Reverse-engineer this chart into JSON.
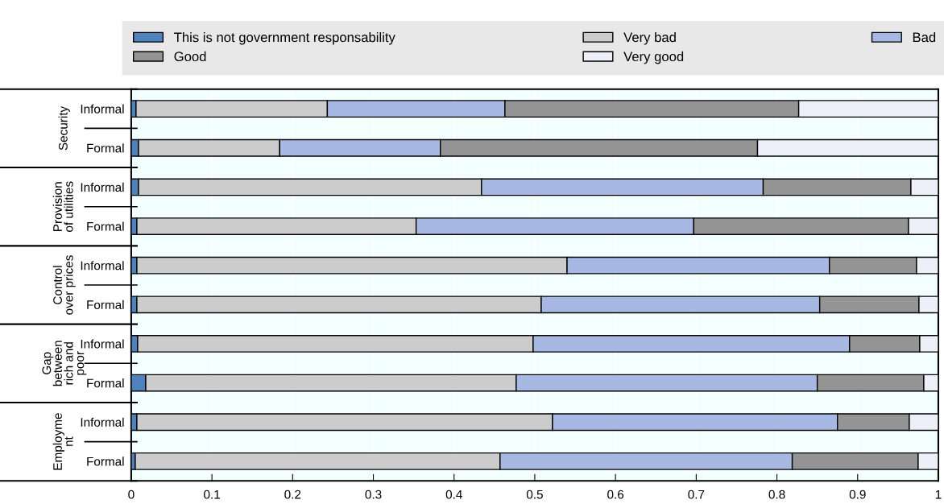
{
  "chart_data": {
    "type": "bar",
    "orientation": "horizontal",
    "stacked": true,
    "categories": [
      "Informal",
      "Formal",
      "Informal",
      "Formal",
      "Informal",
      "Formal",
      "Informal",
      "Formal",
      "Informal",
      "Formal"
    ],
    "annotations": [
      "Security",
      "Provision\nof utilities",
      "Control\nover prices",
      "Gap\nbetween\nrich and\npoor",
      "Employme\nnt"
    ],
    "series": [
      {
        "name": "This is not government responsability",
        "color": "#4f81bd",
        "values": [
          0.006,
          0.009,
          0.009,
          0.007,
          0.007,
          0.007,
          0.008,
          0.018,
          0.007,
          0.005
        ]
      },
      {
        "name": "Very bad",
        "color": "#cccccc",
        "values": [
          0.237,
          0.175,
          0.425,
          0.346,
          0.533,
          0.501,
          0.49,
          0.459,
          0.515,
          0.452
        ]
      },
      {
        "name": "Bad",
        "color": "#a7b9e3",
        "values": [
          0.22,
          0.199,
          0.349,
          0.344,
          0.325,
          0.345,
          0.392,
          0.373,
          0.353,
          0.362
        ]
      },
      {
        "name": "Good",
        "color": "#949494",
        "values": [
          0.364,
          0.393,
          0.183,
          0.266,
          0.108,
          0.123,
          0.087,
          0.132,
          0.089,
          0.156
        ]
      },
      {
        "name": "Very good",
        "color": "#edf0f8",
        "values": [
          0.173,
          0.224,
          0.034,
          0.037,
          0.027,
          0.024,
          0.023,
          0.018,
          0.036,
          0.025
        ]
      }
    ],
    "xlim": [
      0,
      1
    ],
    "xticks": [
      0,
      0.1,
      0.2,
      0.3,
      0.4,
      0.5,
      0.6,
      0.7,
      0.8,
      0.9,
      1
    ],
    "grid": "x",
    "legend": "top"
  }
}
